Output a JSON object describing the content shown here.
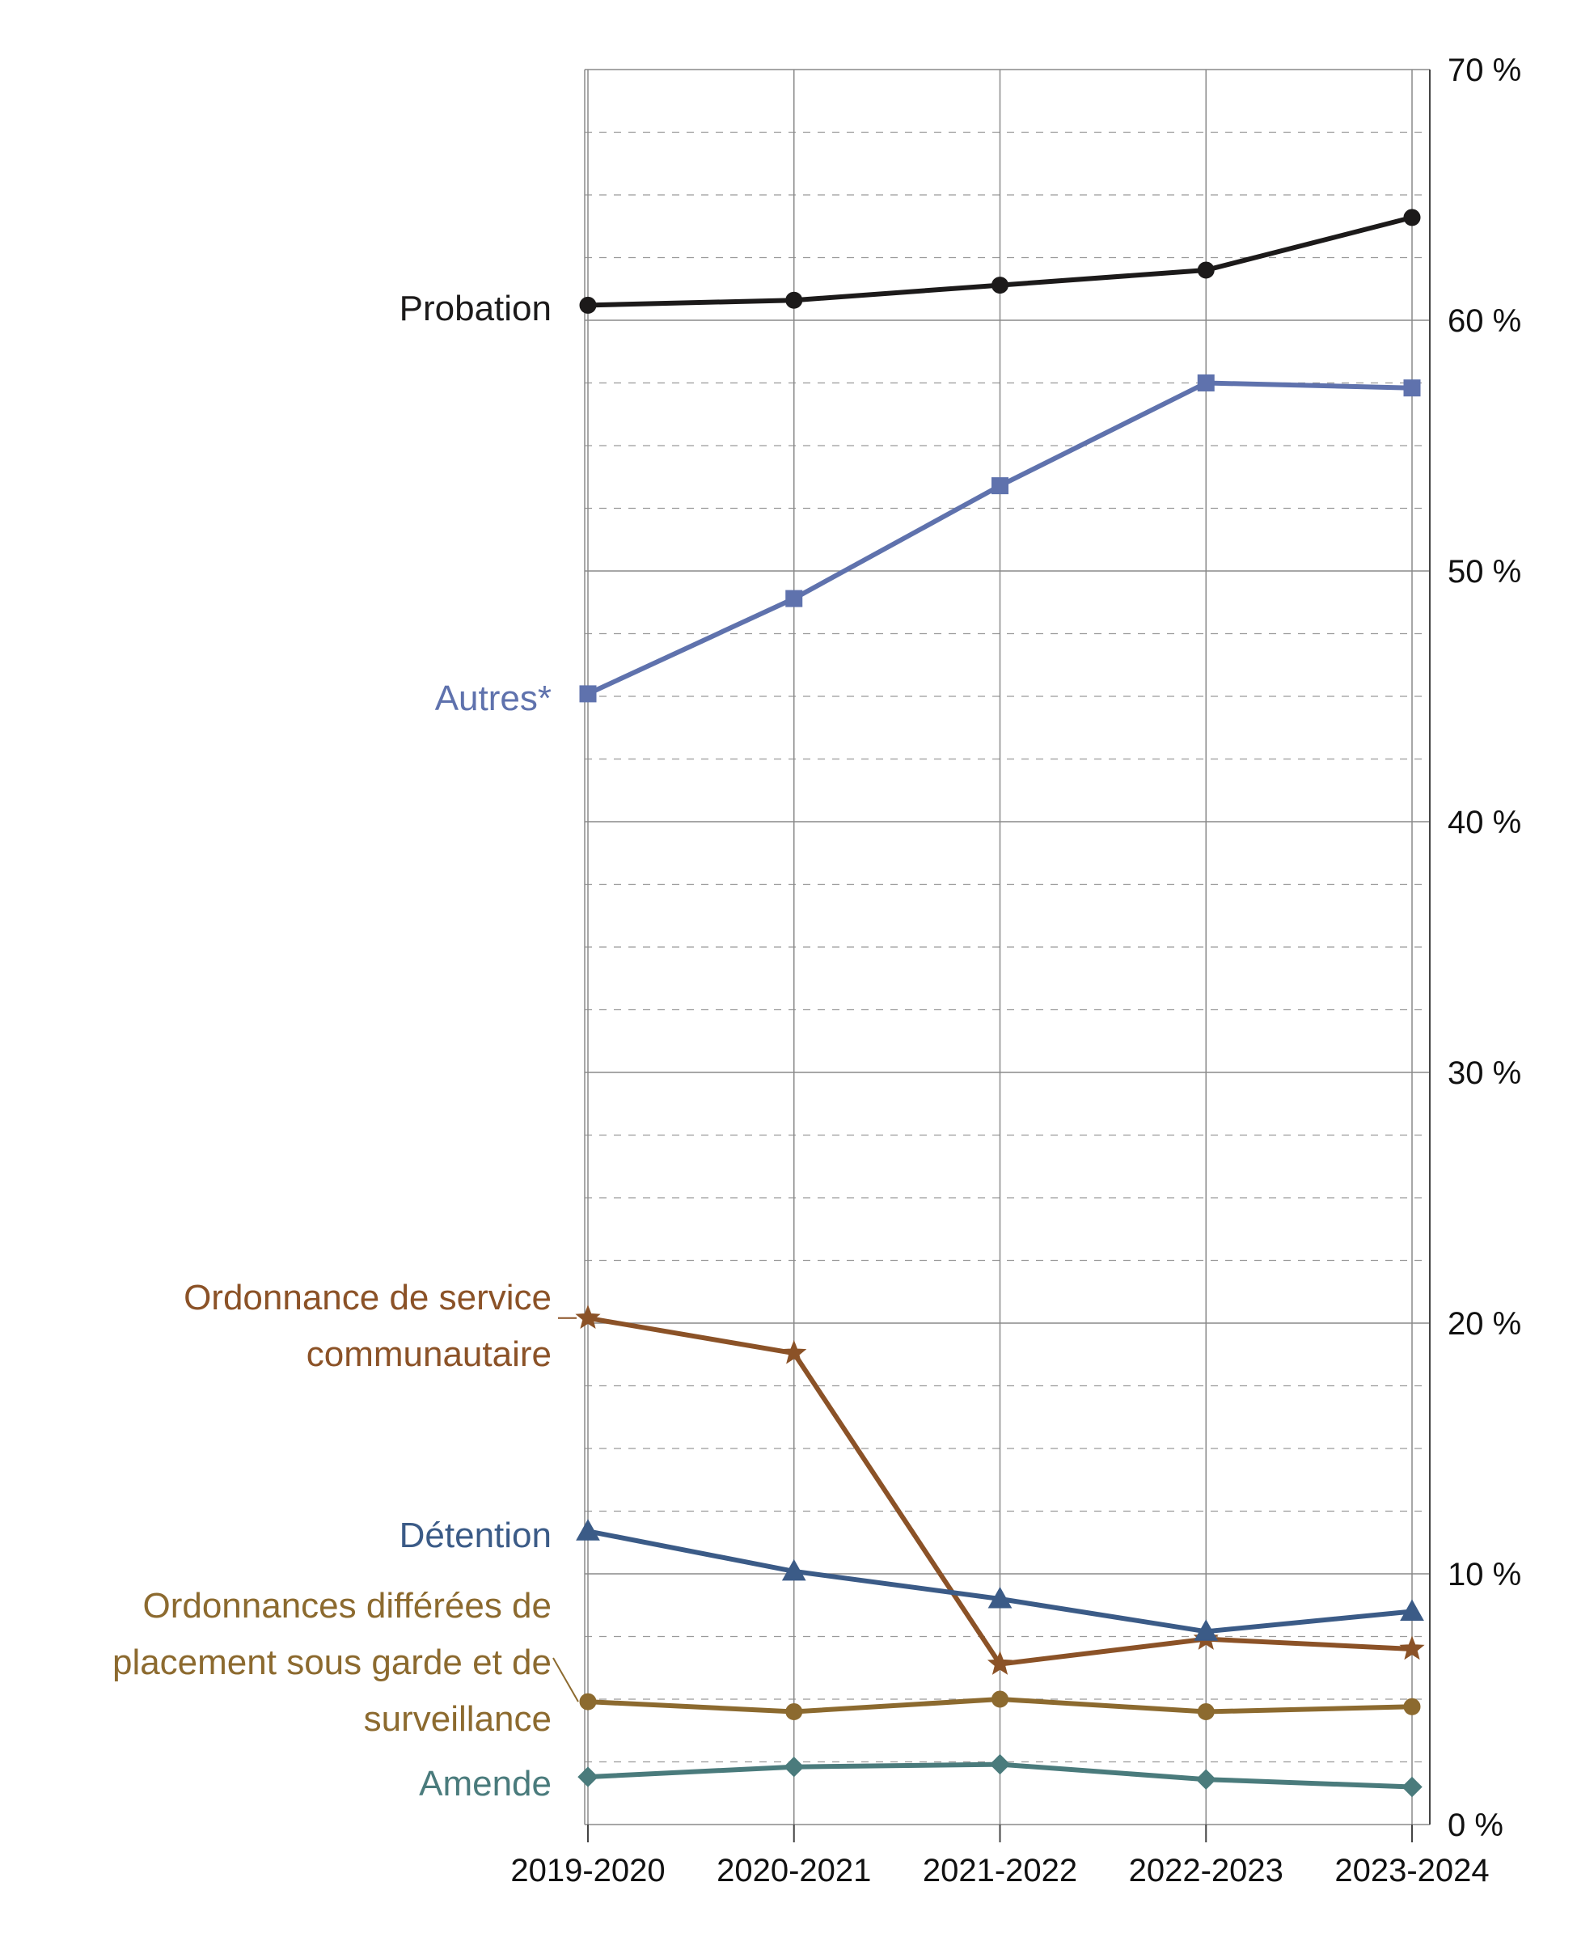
{
  "chart_data": {
    "type": "line",
    "categories": [
      "2019-2020",
      "2020-2021",
      "2021-2022",
      "2022-2023",
      "2023-2024"
    ],
    "y_ticks": [
      "0 %",
      "10 %",
      "20 %",
      "30 %",
      "40 %",
      "50 %",
      "60 %",
      "70 %"
    ],
    "ylim": [
      0,
      70
    ],
    "y_axis_side": "right",
    "grid": {
      "major": true,
      "minor_dashed": true,
      "minor_step": 2.5
    },
    "legend": "direct-labels-left",
    "series": [
      {
        "name": "Probation",
        "values": [
          60.6,
          60.8,
          61.4,
          62.0,
          64.1
        ],
        "color": "#1c1a1a",
        "marker": "circle"
      },
      {
        "name": "Autres*",
        "values": [
          45.1,
          48.9,
          53.4,
          57.5,
          57.3
        ],
        "color": "#5f72ad",
        "marker": "square"
      },
      {
        "name": "Ordonnance de service communautaire",
        "values": [
          20.2,
          18.8,
          6.4,
          7.4,
          7.0
        ],
        "color": "#8b5227",
        "marker": "star"
      },
      {
        "name": "Détention",
        "values": [
          11.7,
          10.1,
          9.0,
          7.7,
          8.5
        ],
        "color": "#3b5b87",
        "marker": "triangle"
      },
      {
        "name": "Ordonnances différées de placement sous garde et de surveillance",
        "values": [
          4.9,
          4.5,
          5.0,
          4.5,
          4.7
        ],
        "color": "#8c6a2f",
        "marker": "circle"
      },
      {
        "name": "Amende",
        "values": [
          1.9,
          2.3,
          2.4,
          1.8,
          1.5
        ],
        "color": "#4a7b7c",
        "marker": "diamond"
      }
    ],
    "labels": [
      {
        "lines": [
          "Probation"
        ],
        "color": "#1c1a1a"
      },
      {
        "lines": [
          "Autres*"
        ],
        "color": "#5f72ad"
      },
      {
        "lines": [
          "Ordonnance de service",
          "communautaire"
        ],
        "color": "#8b5227"
      },
      {
        "lines": [
          "Détention"
        ],
        "color": "#3b5b87"
      },
      {
        "lines": [
          "Ordonnances différées de",
          "placement sous garde et de",
          "surveillance"
        ],
        "color": "#8c6a2f"
      },
      {
        "lines": [
          "Amende"
        ],
        "color": "#4a7b7c"
      }
    ]
  }
}
